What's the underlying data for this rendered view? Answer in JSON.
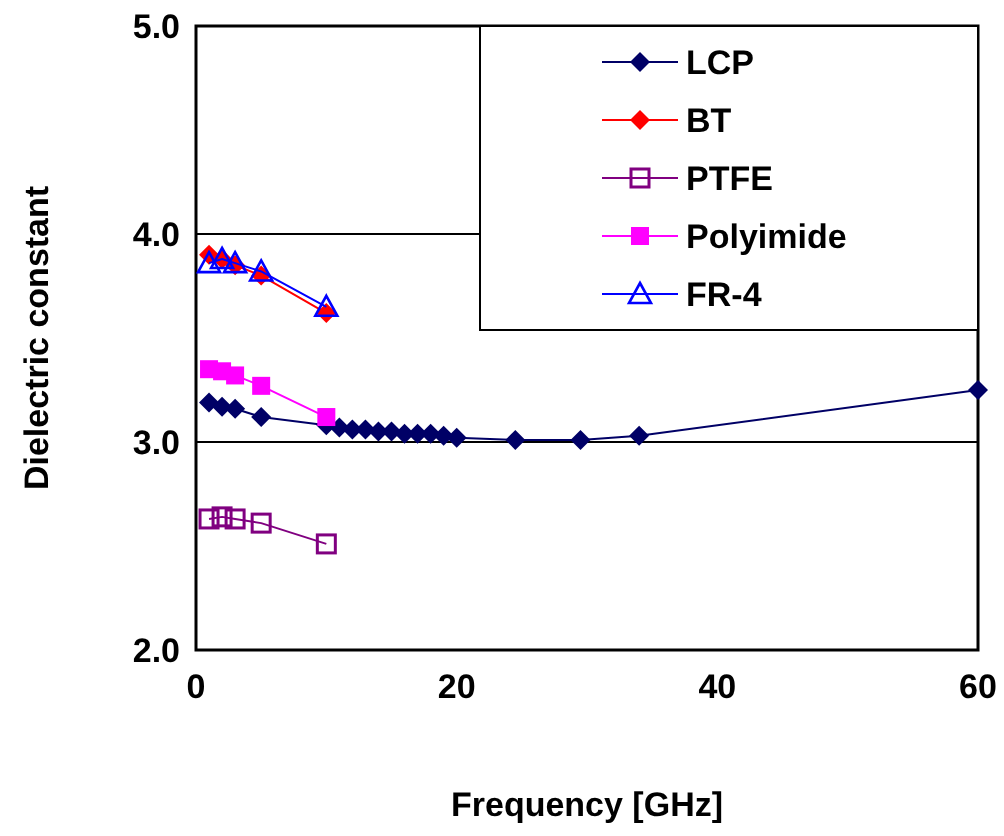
{
  "chart_data": {
    "type": "line",
    "xlabel": "Frequency [GHz]",
    "ylabel": "Dielectric constant",
    "xlim": [
      0,
      60
    ],
    "xticks": [
      0,
      20,
      40,
      60
    ],
    "ylim": [
      2,
      5
    ],
    "yticks": [
      {
        "value": 2,
        "label": "2.0"
      },
      {
        "value": 3,
        "label": "3.0"
      },
      {
        "value": 4,
        "label": "4.0"
      },
      {
        "value": 5,
        "label": "5.0"
      }
    ],
    "grid": "y",
    "legend": "top right",
    "series": [
      {
        "name": "LCP",
        "color": "#000066",
        "marker": "diamond",
        "x": [
          1,
          2,
          3,
          5,
          10,
          11,
          12,
          13,
          14,
          15,
          16,
          17,
          18,
          19,
          20,
          24.5,
          29.5,
          34,
          60
        ],
        "values": [
          3.19,
          3.17,
          3.16,
          3.12,
          3.08,
          3.07,
          3.06,
          3.06,
          3.05,
          3.05,
          3.04,
          3.04,
          3.04,
          3.03,
          3.02,
          3.01,
          3.01,
          3.03,
          3.25
        ]
      },
      {
        "name": "BT",
        "color": "#ff0000",
        "marker": "diamond",
        "x": [
          1,
          2,
          3,
          5,
          10
        ],
        "values": [
          3.9,
          3.88,
          3.85,
          3.8,
          3.62
        ]
      },
      {
        "name": "PTFE",
        "color": "#800080",
        "marker": "square-open",
        "x": [
          1,
          2,
          3,
          5,
          10
        ],
        "values": [
          2.63,
          2.64,
          2.63,
          2.61,
          2.51
        ]
      },
      {
        "name": "Polyimide",
        "color": "#ff00ff",
        "marker": "square",
        "x": [
          1,
          2,
          3,
          5,
          10
        ],
        "values": [
          3.35,
          3.34,
          3.32,
          3.27,
          3.12
        ]
      },
      {
        "name": "FR-4",
        "color": "#0000ff",
        "marker": "triangle-open",
        "x": [
          1,
          2,
          3,
          5,
          10
        ],
        "values": [
          3.86,
          3.88,
          3.86,
          3.82,
          3.65
        ]
      }
    ]
  }
}
